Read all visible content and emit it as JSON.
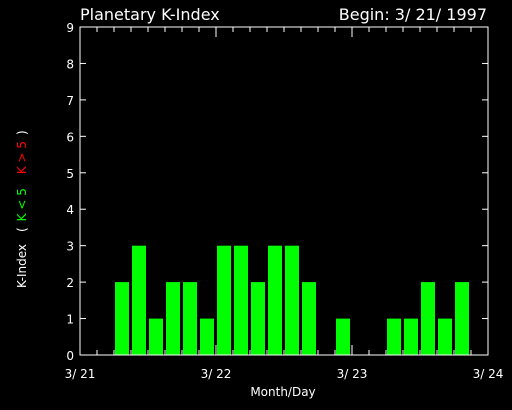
{
  "chart_data": {
    "type": "bar",
    "title": "Planetary K-Index",
    "subtitle": "Begin: 3/ 21/ 1997",
    "xlabel": "Month/Day",
    "ylabel": "K-Index",
    "legend": {
      "open": "(",
      "low": "K < 5",
      "high": "K > 5",
      "close": ")"
    },
    "x_ticks": [
      "3/ 21",
      "3/ 22",
      "3/ 23",
      "3/ 24"
    ],
    "y_ticks": [
      "0",
      "1",
      "2",
      "3",
      "4",
      "5",
      "6",
      "7",
      "8",
      "9"
    ],
    "ylim": [
      0,
      9
    ],
    "bars_per_day": 8,
    "days": 3,
    "values": [
      0,
      0,
      2,
      3,
      1,
      2,
      2,
      1,
      3,
      3,
      2,
      3,
      3,
      2,
      0,
      1,
      0,
      0,
      1,
      1,
      2,
      1,
      2,
      0
    ],
    "colors": {
      "low": "#00ff00",
      "high": "#ff0000",
      "axis": "#ffffff",
      "background": "#000000"
    },
    "threshold": 5
  }
}
